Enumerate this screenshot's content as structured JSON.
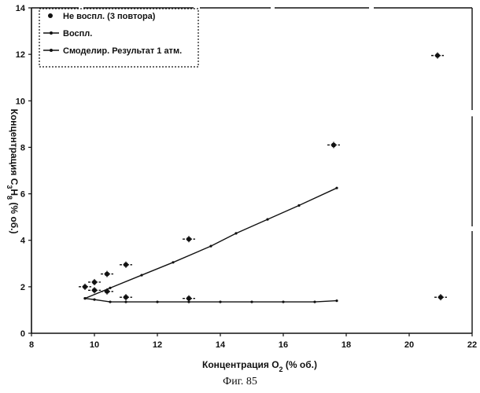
{
  "chart_data": {
    "type": "line",
    "title": "",
    "xlabel_main": "Концентрация O",
    "xlabel_sub": "2",
    "xlabel_tail": " (% об.)",
    "ylabel_main": "Концентрация C",
    "ylabel_sub1": "3",
    "ylabel_mid": "H",
    "ylabel_sub2": "8",
    "ylabel_tail": " (% об.)",
    "xlim": [
      8,
      22
    ],
    "ylim": [
      0,
      14
    ],
    "xticks": [
      8,
      10,
      12,
      14,
      16,
      18,
      20,
      22
    ],
    "yticks": [
      0,
      2,
      4,
      6,
      8,
      10,
      12,
      14
    ],
    "grid": false,
    "legend_position": "top-left",
    "series": [
      {
        "name": "Не воспламенение (3 повтора)",
        "legend_label": "Не воспл. (3 повтора)",
        "kind": "scatter",
        "x": [
          9.7,
          10.0,
          10.0,
          10.4,
          10.4,
          11.0,
          11.0,
          13.0,
          13.0,
          17.6,
          20.9,
          21.0
        ],
        "y": [
          2.0,
          2.2,
          1.85,
          2.55,
          1.8,
          2.95,
          1.55,
          4.05,
          1.5,
          8.1,
          11.95,
          1.55
        ]
      },
      {
        "name": "Воспламенение",
        "legend_label": "Воспл.",
        "kind": "line",
        "x": [
          9.7,
          10.0,
          10.5,
          11.0,
          12.0,
          13.0,
          14.0,
          15.0,
          16.0,
          17.0,
          17.7
        ],
        "y": [
          1.5,
          1.45,
          1.35,
          1.35,
          1.35,
          1.35,
          1.35,
          1.35,
          1.35,
          1.35,
          1.4
        ]
      },
      {
        "name": "Смоделированный результат 1 атм.",
        "legend_label": "Смоделир. Результат 1 атм.",
        "kind": "line",
        "x": [
          9.7,
          10.5,
          11.5,
          12.5,
          13.7,
          14.5,
          15.5,
          16.5,
          17.7
        ],
        "y": [
          1.5,
          1.95,
          2.5,
          3.05,
          3.75,
          4.3,
          4.9,
          5.5,
          6.25
        ]
      }
    ]
  },
  "caption": "Фиг. 85",
  "colors": {
    "ink": "#111111",
    "background": "#ffffff"
  }
}
